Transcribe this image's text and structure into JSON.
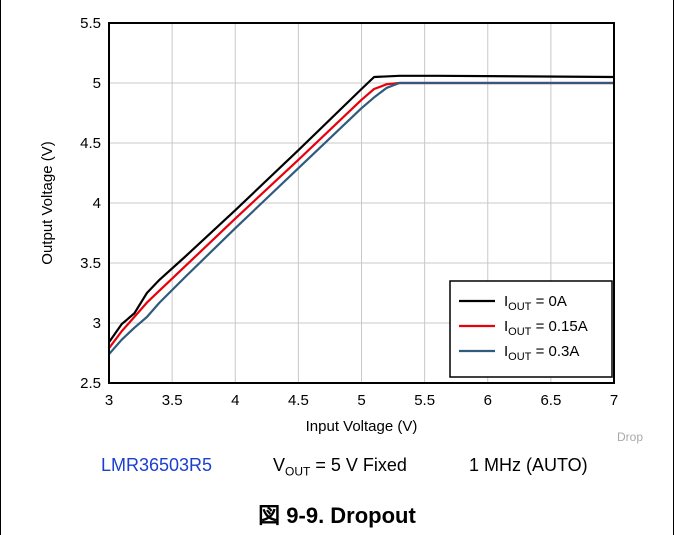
{
  "chart_data": {
    "type": "line",
    "xlabel": "Input Voltage (V)",
    "ylabel": "Output Voltage (V)",
    "xlim": [
      3,
      7
    ],
    "ylim": [
      2.5,
      5.5
    ],
    "x_ticks": [
      "3",
      "3.5",
      "4",
      "4.5",
      "5",
      "5.5",
      "6",
      "6.5",
      "7"
    ],
    "y_ticks": [
      "2.5",
      "3",
      "3.5",
      "4",
      "4.5",
      "5",
      "5.5"
    ],
    "grid": true,
    "legend_position": "bottom-right",
    "series": [
      {
        "name_main": "I",
        "name_sub": "OUT",
        "name_rest": " = 0A",
        "color": "#000000",
        "points": [
          [
            3.0,
            2.84
          ],
          [
            3.1,
            2.99
          ],
          [
            3.2,
            3.08
          ],
          [
            3.3,
            3.25
          ],
          [
            3.4,
            3.36
          ],
          [
            3.6,
            3.55
          ],
          [
            4.0,
            3.94
          ],
          [
            4.5,
            4.44
          ],
          [
            5.0,
            4.95
          ],
          [
            5.1,
            5.05
          ],
          [
            5.3,
            5.06
          ],
          [
            5.6,
            5.06
          ],
          [
            7.0,
            5.05
          ]
        ]
      },
      {
        "name_main": "I",
        "name_sub": "OUT",
        "name_rest": " = 0.15A",
        "color": "#e8000b",
        "points": [
          [
            3.0,
            2.79
          ],
          [
            3.1,
            2.93
          ],
          [
            3.2,
            3.05
          ],
          [
            3.3,
            3.17
          ],
          [
            3.4,
            3.27
          ],
          [
            3.6,
            3.47
          ],
          [
            4.0,
            3.87
          ],
          [
            4.5,
            4.36
          ],
          [
            5.0,
            4.86
          ],
          [
            5.1,
            4.95
          ],
          [
            5.2,
            4.99
          ],
          [
            5.3,
            5.0
          ],
          [
            7.0,
            5.0
          ]
        ]
      },
      {
        "name_main": "I",
        "name_sub": "OUT",
        "name_rest": " = 0.3A",
        "color": "#2f5b7c",
        "points": [
          [
            3.0,
            2.74
          ],
          [
            3.1,
            2.86
          ],
          [
            3.2,
            2.96
          ],
          [
            3.3,
            3.05
          ],
          [
            3.4,
            3.17
          ],
          [
            3.6,
            3.38
          ],
          [
            4.0,
            3.79
          ],
          [
            4.5,
            4.29
          ],
          [
            5.0,
            4.79
          ],
          [
            5.1,
            4.88
          ],
          [
            5.2,
            4.96
          ],
          [
            5.3,
            5.0
          ],
          [
            7.0,
            5.0
          ]
        ]
      }
    ]
  },
  "watermark": "Drop",
  "caption": {
    "device": "LMR36503R5",
    "vout_main": "V",
    "vout_sub": "OUT",
    "vout_rest": " = 5 V Fixed",
    "frequency": "1 MHz (AUTO)"
  },
  "figure_title": "図 9-9. Dropout"
}
